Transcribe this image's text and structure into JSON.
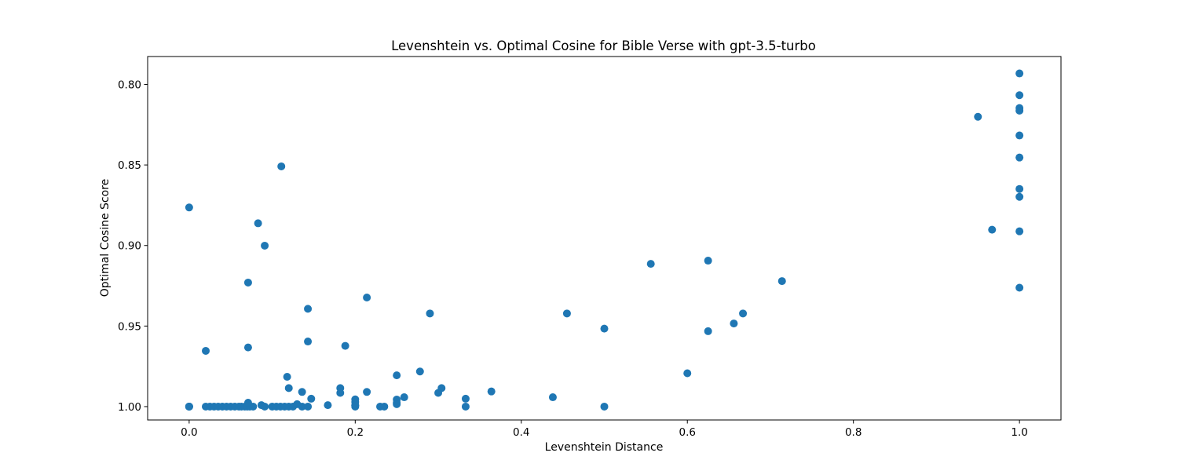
{
  "chart_data": {
    "type": "scatter",
    "title": "Levenshtein vs. Optimal Cosine for Bible Verse with gpt-3.5-turbo",
    "xlabel": "Levenshtein Distance",
    "ylabel": "Optimal Cosine Score",
    "xlim": [
      -0.05,
      1.05
    ],
    "ylim": [
      1.0083,
      0.7827
    ],
    "y_inverted": true,
    "grid": false,
    "marker_color": "#1f77b4",
    "x_ticks": [
      {
        "value": 0.0,
        "label": "0.0"
      },
      {
        "value": 0.2,
        "label": "0.2"
      },
      {
        "value": 0.4,
        "label": "0.4"
      },
      {
        "value": 0.6,
        "label": "0.6"
      },
      {
        "value": 0.8,
        "label": "0.8"
      },
      {
        "value": 1.0,
        "label": "1.0"
      }
    ],
    "y_ticks": [
      {
        "value": 0.8,
        "label": "0.80"
      },
      {
        "value": 0.85,
        "label": "0.85"
      },
      {
        "value": 0.9,
        "label": "0.90"
      },
      {
        "value": 0.95,
        "label": "0.95"
      },
      {
        "value": 1.0,
        "label": "1.00"
      }
    ],
    "points": [
      [
        0.0,
        1.0
      ],
      [
        0.0,
        1.0
      ],
      [
        0.0,
        1.0
      ],
      [
        0.0,
        1.0
      ],
      [
        0.0,
        0.8764
      ],
      [
        0.02,
        0.9654
      ],
      [
        0.02,
        1.0
      ],
      [
        0.025,
        1.0
      ],
      [
        0.03,
        1.0
      ],
      [
        0.035,
        1.0
      ],
      [
        0.04,
        1.0
      ],
      [
        0.045,
        1.0
      ],
      [
        0.05,
        1.0
      ],
      [
        0.055,
        1.0
      ],
      [
        0.06,
        1.0
      ],
      [
        0.063,
        1.0
      ],
      [
        0.067,
        1.0
      ],
      [
        0.07,
        1.0
      ],
      [
        0.073,
        1.0
      ],
      [
        0.077,
        1.0
      ],
      [
        0.071,
        0.9633
      ],
      [
        0.071,
        0.923
      ],
      [
        0.071,
        0.9976
      ],
      [
        0.083,
        0.8862
      ],
      [
        0.087,
        0.9991
      ],
      [
        0.091,
        0.9001
      ],
      [
        0.091,
        1.0
      ],
      [
        0.1,
        1.0
      ],
      [
        0.105,
        1.0
      ],
      [
        0.11,
        1.0
      ],
      [
        0.111,
        0.8509
      ],
      [
        0.115,
        1.0
      ],
      [
        0.118,
        0.9815
      ],
      [
        0.12,
        1.0
      ],
      [
        0.12,
        0.9885
      ],
      [
        0.125,
        1.0
      ],
      [
        0.13,
        0.9985
      ],
      [
        0.136,
        1.0
      ],
      [
        0.136,
        0.9909
      ],
      [
        0.143,
        1.0
      ],
      [
        0.143,
        0.9393
      ],
      [
        0.143,
        0.9596
      ],
      [
        0.147,
        0.9951
      ],
      [
        0.167,
        0.9991
      ],
      [
        0.182,
        0.9885
      ],
      [
        0.182,
        0.9915
      ],
      [
        0.188,
        0.9623
      ],
      [
        0.2,
        1.0
      ],
      [
        0.2,
        0.9991
      ],
      [
        0.2,
        0.9955
      ],
      [
        0.2,
        0.9971
      ],
      [
        0.2,
        0.9991
      ],
      [
        0.214,
        0.9909
      ],
      [
        0.214,
        0.9323
      ],
      [
        0.23,
        1.0
      ],
      [
        0.235,
        1.0
      ],
      [
        0.25,
        0.9976
      ],
      [
        0.25,
        0.9956
      ],
      [
        0.25,
        0.9806
      ],
      [
        0.25,
        0.9985
      ],
      [
        0.259,
        0.9942
      ],
      [
        0.278,
        0.9782
      ],
      [
        0.29,
        0.9422
      ],
      [
        0.3,
        0.9915
      ],
      [
        0.304,
        0.9885
      ],
      [
        0.333,
        0.9951
      ],
      [
        0.333,
        1.0
      ],
      [
        0.364,
        0.9906
      ],
      [
        0.438,
        0.9942
      ],
      [
        0.455,
        0.9422
      ],
      [
        0.5,
        1.0
      ],
      [
        0.5,
        0.9516
      ],
      [
        0.556,
        0.9114
      ],
      [
        0.6,
        0.9793
      ],
      [
        0.625,
        0.9094
      ],
      [
        0.625,
        0.9532
      ],
      [
        0.656,
        0.9484
      ],
      [
        0.667,
        0.9422
      ],
      [
        0.714,
        0.9221
      ],
      [
        0.95,
        0.8201
      ],
      [
        0.967,
        0.8902
      ],
      [
        1.0,
        0.7932
      ],
      [
        1.0,
        0.8067
      ],
      [
        1.0,
        0.8147
      ],
      [
        1.0,
        0.8163
      ],
      [
        1.0,
        0.8317
      ],
      [
        1.0,
        0.8454
      ],
      [
        1.0,
        0.8649
      ],
      [
        1.0,
        0.8698
      ],
      [
        1.0,
        0.8912
      ],
      [
        1.0,
        0.9262
      ]
    ]
  }
}
